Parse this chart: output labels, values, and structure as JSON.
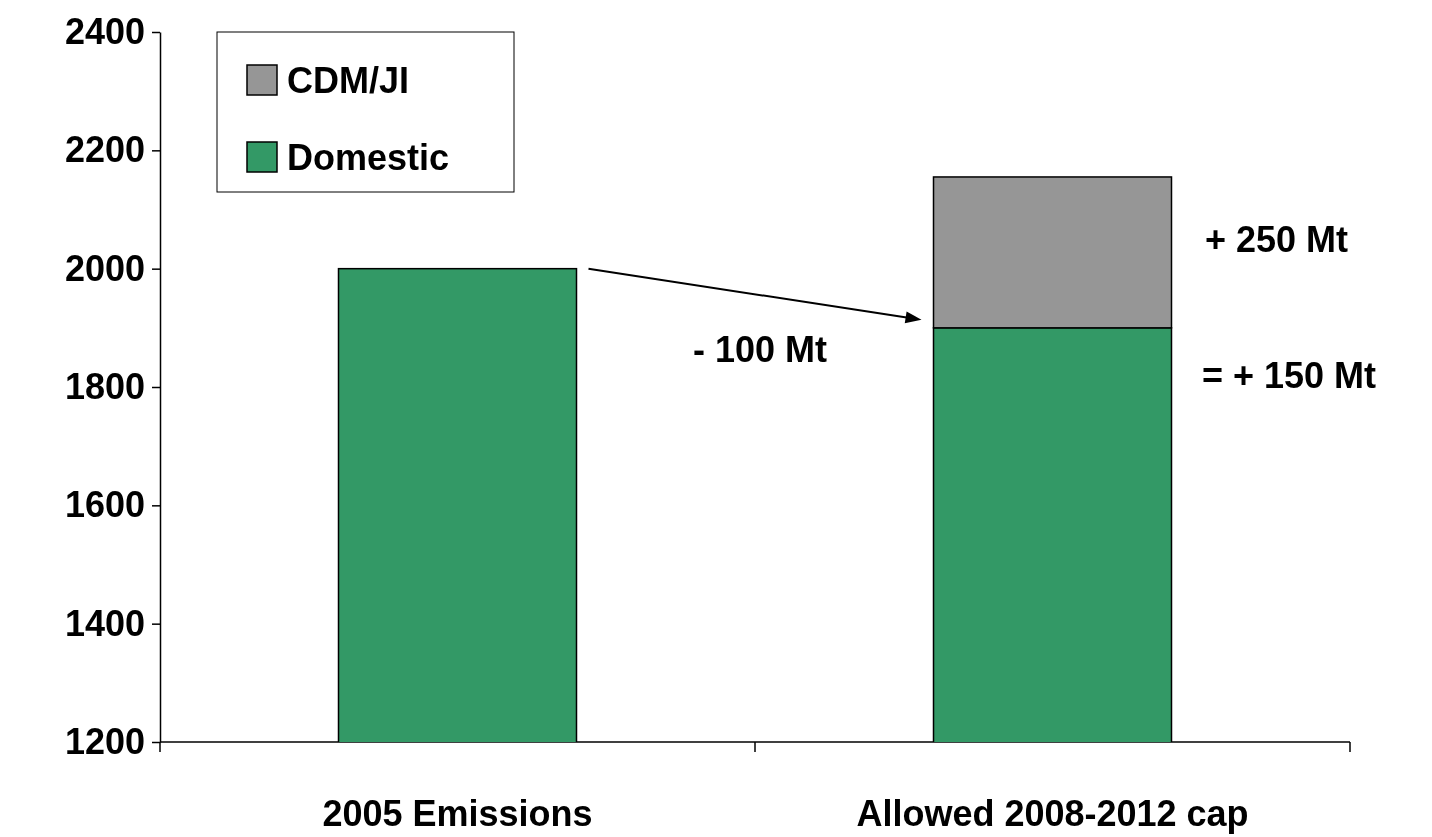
{
  "chart_data": {
    "type": "bar",
    "stacked": true,
    "categories": [
      "2005 Emissions",
      "Allowed 2008-2012 cap"
    ],
    "series": [
      {
        "name": "Domestic",
        "color": "#339966",
        "values": [
          2000,
          1900
        ]
      },
      {
        "name": "CDM/JI",
        "color": "#969696",
        "values": [
          null,
          255
        ],
        "base": [
          null,
          1900
        ]
      }
    ],
    "ylim": [
      1200,
      2400
    ],
    "yticks": [
      1200,
      1400,
      1600,
      1800,
      2000,
      2200,
      2400
    ],
    "grid": false,
    "legend": "top left",
    "annotations": [
      "- 100 Mt",
      "+ 250 Mt",
      "= + 150 Mt"
    ]
  }
}
